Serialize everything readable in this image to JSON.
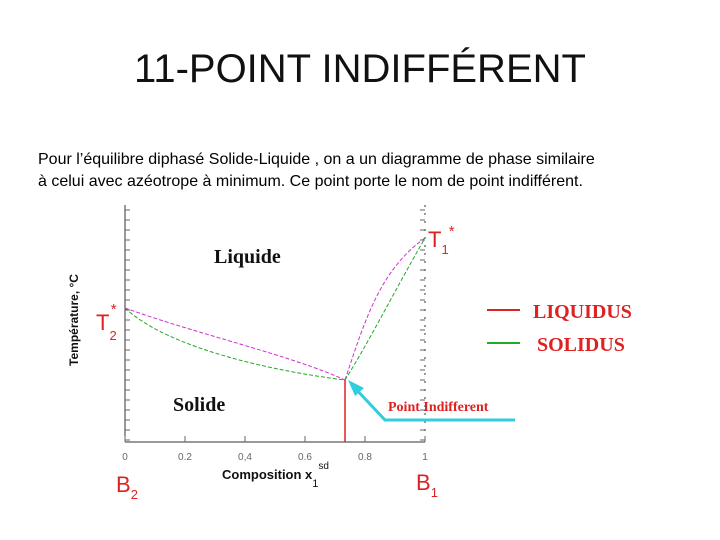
{
  "title": "11-POINT INDIFFÉRENT",
  "paragraph": {
    "line1": "Pour l’équilibre diphasé Solide-Liquide , on a un diagramme de phase similaire",
    "line2": "à celui avec azéotrope à minimum. Ce point porte le nom de point indifférent."
  },
  "diagram": {
    "y_axis_label": "Température, °C",
    "x_axis_label": {
      "main": "Composition x",
      "sub": "1",
      "sup": "sd"
    },
    "x_ticks": [
      "0",
      "0.2",
      "0,4",
      "0.6",
      "0.8",
      "1"
    ],
    "regions": {
      "liquid": "Liquide",
      "solid": "Solide"
    },
    "point_label": "Point Indifferent",
    "t1": {
      "main": "T",
      "sub": "1",
      "sup": "*"
    },
    "t2": {
      "main": "T",
      "sub": "2",
      "sup": "*"
    },
    "b1": {
      "main": "B",
      "sub": "1"
    },
    "b2": {
      "main": "B",
      "sub": "2"
    },
    "legend": [
      {
        "name": "LIQUIDUS",
        "color": "#dd2222"
      },
      {
        "name": "SOLIDUS",
        "color": "#22aa22"
      }
    ]
  }
}
